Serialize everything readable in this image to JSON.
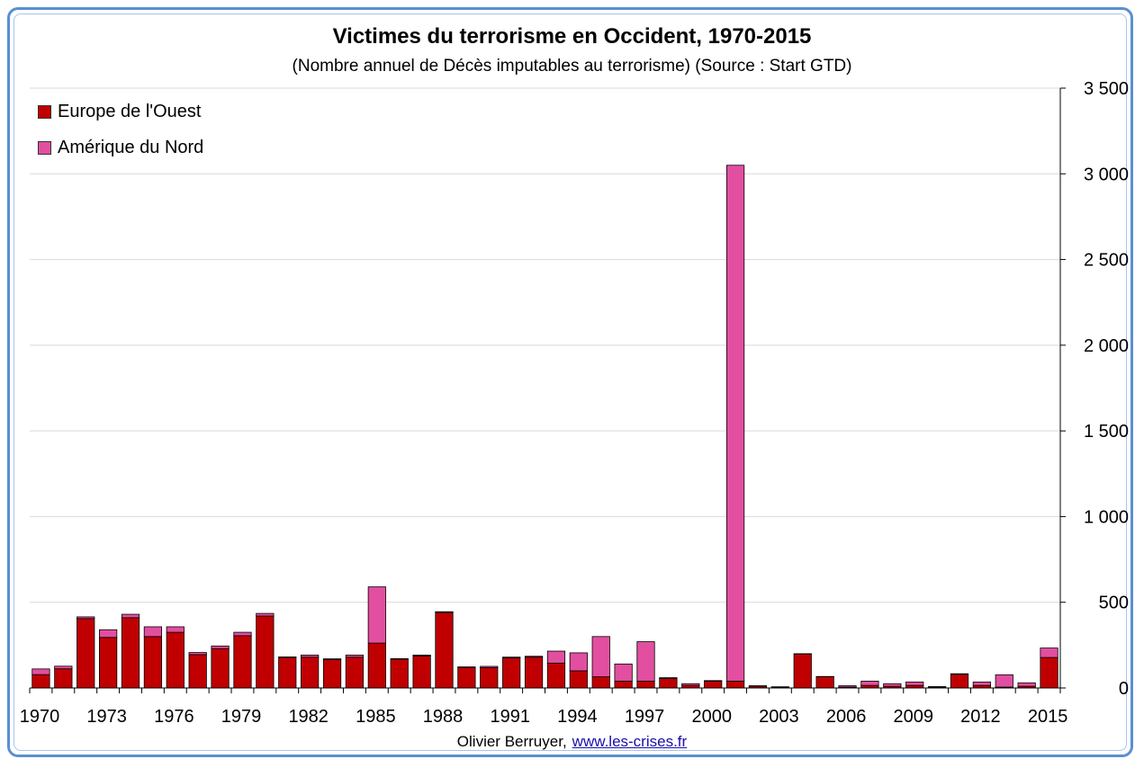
{
  "chart_data": {
    "type": "bar",
    "stacked": true,
    "title": "Victimes du terrorisme en Occident, 1970-2015",
    "subtitle": "(Nombre annuel de Décès imputables au terrorisme) (Source : Start GTD)",
    "xlabel": "",
    "ylabel": "",
    "ylim": [
      0,
      3500
    ],
    "y_axis_position": "right",
    "y_ticks": [
      0,
      500,
      1000,
      1500,
      2000,
      2500,
      3000,
      3500
    ],
    "y_tick_labels": [
      "0",
      "500",
      "1 000",
      "1 500",
      "2 000",
      "2 500",
      "3 000",
      "3 500"
    ],
    "grid": true,
    "legend_position": "top-left",
    "categories": [
      "1970",
      "1971",
      "1972",
      "1973",
      "1974",
      "1975",
      "1976",
      "1977",
      "1978",
      "1979",
      "1980",
      "1981",
      "1982",
      "1983",
      "1984",
      "1985",
      "1986",
      "1987",
      "1988",
      "1989",
      "1990",
      "1991",
      "1992",
      "1993",
      "1994",
      "1995",
      "1996",
      "1997",
      "1998",
      "1999",
      "2000",
      "2001",
      "2002",
      "2003",
      "2004",
      "2005",
      "2006",
      "2007",
      "2008",
      "2009",
      "2010",
      "2011",
      "2012",
      "2013",
      "2014",
      "2015"
    ],
    "x_tick_labels": [
      "1970",
      "1973",
      "1976",
      "1979",
      "1982",
      "1985",
      "1988",
      "1991",
      "1994",
      "1997",
      "2000",
      "2003",
      "2006",
      "2009",
      "2012",
      "2015"
    ],
    "series": [
      {
        "name": "Europe de l'Ouest",
        "color": "#c00000",
        "values": [
          78,
          112,
          405,
          295,
          410,
          300,
          325,
          195,
          230,
          305,
          420,
          178,
          180,
          165,
          180,
          262,
          168,
          187,
          440,
          120,
          118,
          175,
          180,
          145,
          100,
          65,
          40,
          40,
          55,
          15,
          40,
          40,
          10,
          5,
          198,
          65,
          5,
          15,
          10,
          15,
          5,
          80,
          15,
          5,
          10,
          178
        ]
      },
      {
        "name": "Amérique du Nord",
        "color": "#e24fa0",
        "values": [
          33,
          15,
          10,
          45,
          20,
          57,
          32,
          12,
          15,
          20,
          15,
          3,
          12,
          5,
          12,
          328,
          3,
          5,
          5,
          3,
          8,
          5,
          5,
          70,
          105,
          235,
          100,
          230,
          5,
          10,
          3,
          3010,
          3,
          2,
          2,
          2,
          8,
          25,
          15,
          20,
          3,
          3,
          20,
          72,
          20,
          55
        ]
      }
    ]
  },
  "legend": {
    "europe": "Europe de l'Ouest",
    "amerique": "Amérique du Nord"
  },
  "source": {
    "author": "Olivier Berruyer,",
    "link": "www.les-crises.fr"
  },
  "colors": {
    "frame": "#5b8fd0",
    "grid": "#d9d9d9"
  }
}
